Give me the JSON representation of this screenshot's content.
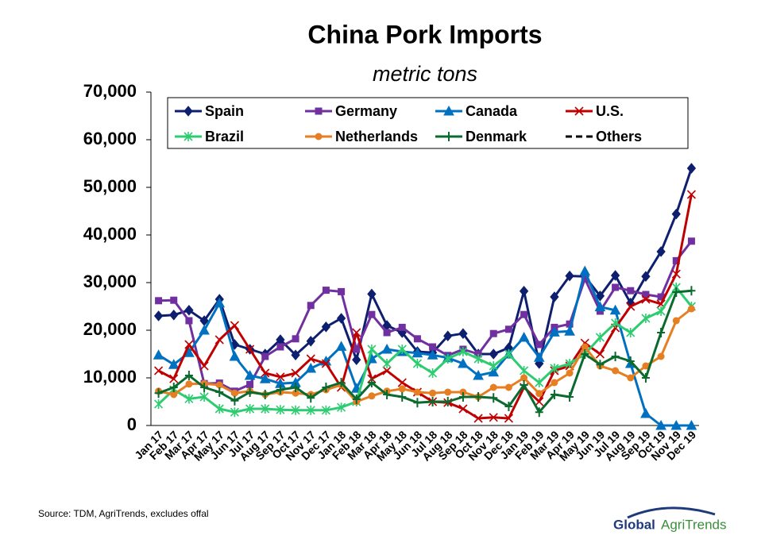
{
  "chart_data": {
    "type": "line",
    "title": "China Pork Imports",
    "subtitle": "metric tons",
    "categories": [
      "Jan 17",
      "Feb 17",
      "Mar 17",
      "Apr 17",
      "May 17",
      "Jun 17",
      "Jul 17",
      "Aug 17",
      "Sep 17",
      "Oct 17",
      "Nov 17",
      "Dec 17",
      "Jan 18",
      "Feb 18",
      "Mar 18",
      "Apr 18",
      "May 18",
      "Jun 18",
      "Jul 18",
      "Aug 18",
      "Sep 18",
      "Oct 18",
      "Nov 18",
      "Dec 18",
      "Jan 19",
      "Feb 19",
      "Mar 19",
      "Apr 19",
      "May 19",
      "Jun 19",
      "Jul 19",
      "Aug 19",
      "Sep 19",
      "Oct 19",
      "Nov 19",
      "Dec 19"
    ],
    "series": [
      {
        "name": "Spain",
        "color": "#0d1f6e",
        "marker": "diamond",
        "values": [
          23000,
          23200,
          24200,
          22000,
          26500,
          17000,
          16000,
          15000,
          18000,
          14800,
          17700,
          20700,
          22500,
          13800,
          27600,
          21000,
          19500,
          15500,
          15300,
          18800,
          19300,
          15000,
          15000,
          16300,
          28200,
          13000,
          27000,
          31400,
          31300,
          27200,
          31500,
          25700,
          31300,
          36500,
          44400,
          54000
        ]
      },
      {
        "name": "Germany",
        "color": "#7030a0",
        "marker": "square",
        "values": [
          26200,
          26300,
          22000,
          8800,
          8900,
          7200,
          8600,
          14500,
          16500,
          18200,
          25200,
          28400,
          28100,
          16000,
          23300,
          19500,
          20600,
          18200,
          16500,
          14700,
          16000,
          15000,
          19300,
          20200,
          23300,
          17000,
          20600,
          21300,
          30800,
          24000,
          29000,
          28300,
          27500,
          27000,
          34600,
          38700
        ]
      },
      {
        "name": "Canada",
        "color": "#0070c0",
        "marker": "triangle",
        "values": [
          14800,
          12800,
          15300,
          20000,
          25700,
          14500,
          10500,
          9800,
          8800,
          9000,
          12000,
          13500,
          16600,
          7800,
          14000,
          16000,
          15500,
          15200,
          14800,
          14200,
          13000,
          10500,
          11200,
          15000,
          18500,
          14300,
          19600,
          19800,
          32400,
          24900,
          24200,
          13000,
          2500,
          0,
          0,
          0
        ]
      },
      {
        "name": "U.S.",
        "color": "#c00000",
        "marker": "x",
        "values": [
          11500,
          9800,
          17000,
          12500,
          18000,
          21000,
          16000,
          11000,
          10200,
          11000,
          14000,
          13000,
          8000,
          19500,
          9800,
          11500,
          9000,
          7000,
          5000,
          4800,
          3500,
          1500,
          1700,
          1500,
          8000,
          5000,
          11500,
          12500,
          17300,
          15000,
          20500,
          25000,
          26500,
          25500,
          31800,
          48500
        ]
      },
      {
        "name": "Brazil",
        "color": "#2ecc71",
        "marker": "star",
        "values": [
          4500,
          7500,
          5600,
          6000,
          3500,
          2800,
          3500,
          3500,
          3300,
          3200,
          3200,
          3200,
          3800,
          5000,
          16000,
          13000,
          16000,
          13000,
          11000,
          14000,
          15500,
          14000,
          12500,
          15000,
          11500,
          9000,
          12000,
          13000,
          15000,
          18500,
          21500,
          19500,
          22500,
          24000,
          29000,
          25000
        ]
      },
      {
        "name": "Netherlands",
        "color": "#e67e22",
        "marker": "circle",
        "values": [
          7200,
          6500,
          8700,
          8800,
          8500,
          6800,
          7200,
          6500,
          7000,
          6800,
          6500,
          7500,
          8500,
          5000,
          6200,
          7200,
          7700,
          7000,
          6800,
          7000,
          7000,
          6000,
          8000,
          8000,
          10000,
          6700,
          9000,
          11000,
          16500,
          12500,
          11500,
          10000,
          12500,
          14500,
          22000,
          24500
        ]
      },
      {
        "name": "Denmark",
        "color": "#0b6b2f",
        "marker": "plus",
        "values": [
          6800,
          8000,
          10500,
          8000,
          7000,
          5200,
          7000,
          6500,
          7500,
          8000,
          5800,
          8000,
          9000,
          5500,
          9000,
          6500,
          6000,
          4800,
          5000,
          5000,
          6000,
          6000,
          5800,
          4000,
          8500,
          2800,
          6500,
          6000,
          15000,
          12800,
          14500,
          13500,
          10000,
          19500,
          28000,
          28300
        ]
      },
      {
        "name": "Others",
        "color": "#000000",
        "marker": "none",
        "dash": true,
        "values": [
          null,
          null,
          null,
          null,
          null,
          null,
          null,
          null,
          null,
          null,
          null,
          null,
          null,
          null,
          null,
          null,
          null,
          null,
          null,
          null,
          null,
          null,
          null,
          null,
          null,
          null,
          null,
          null,
          null,
          null,
          null,
          null,
          null,
          null,
          null,
          null
        ]
      }
    ],
    "ylim": [
      0,
      70000
    ],
    "yticks": [
      0,
      {
        "value": 10000,
        "label": "10,000"
      },
      {
        "value": 20000,
        "label": "20,000"
      },
      {
        "value": 30000,
        "label": "30,000"
      },
      {
        "value": 40000,
        "label": "40,000"
      },
      {
        "value": 50000,
        "label": "50,000"
      },
      {
        "value": 60000,
        "label": "60,000"
      },
      {
        "value": 70000,
        "label": "70,000"
      }
    ],
    "legend": "top"
  },
  "source": "Source:  TDM, AgriTrends, excludes offal",
  "logo": {
    "brand": "Global",
    "name": "AgriTrends"
  }
}
